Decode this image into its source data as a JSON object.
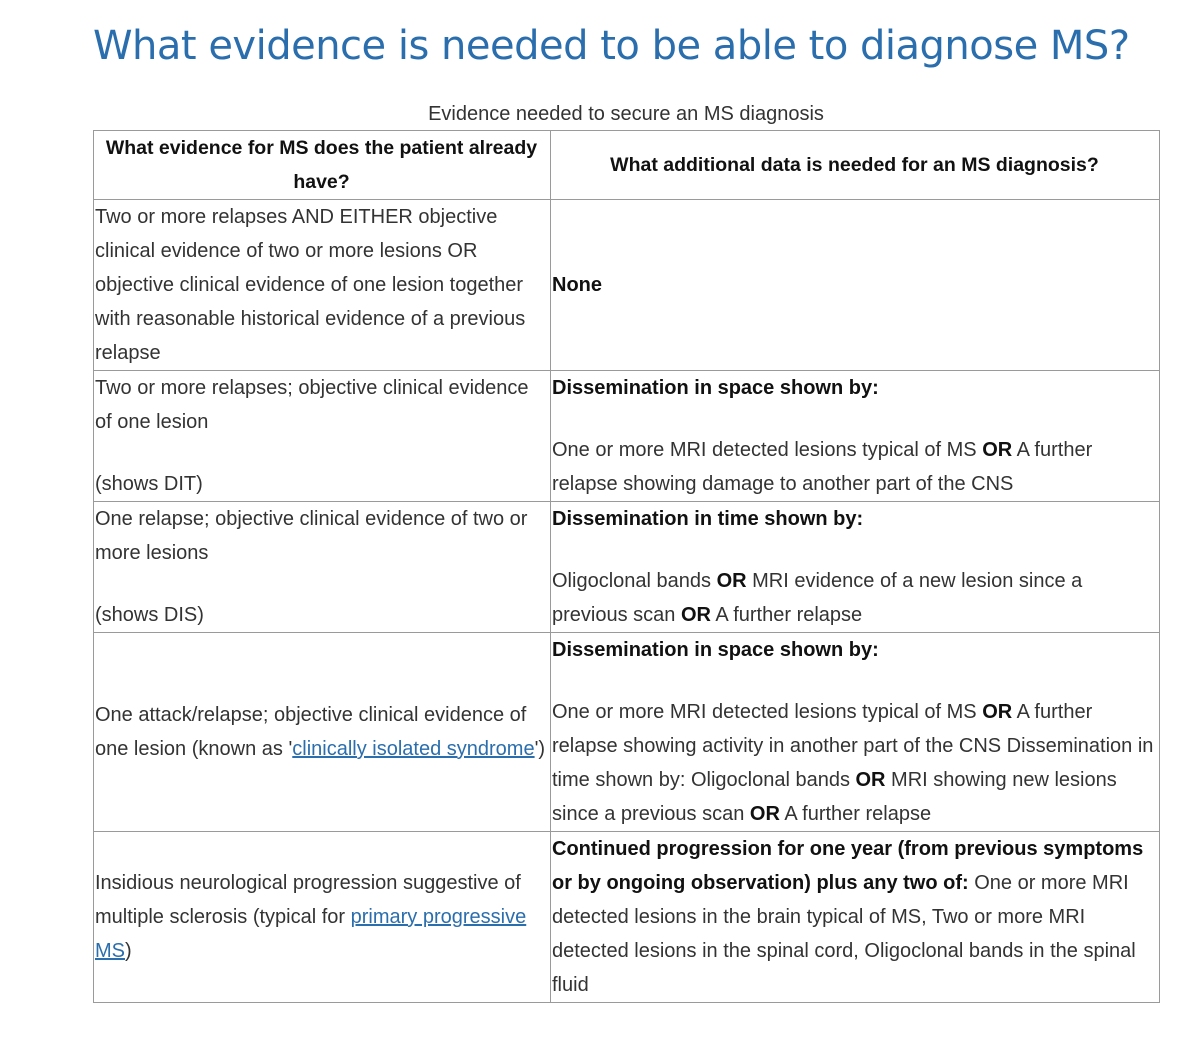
{
  "page": {
    "title": "What evidence is needed to be able to diagnose MS?",
    "caption": "Evidence needed to secure an MS diagnosis"
  },
  "table": {
    "headers": [
      "What evidence for MS does the patient already have?",
      "What additional data is needed for an MS diagnosis?"
    ],
    "rows": [
      {
        "evidence": "Two or more relapses AND EITHER objective clinical evidence of two or more lesions OR objective clinical evidence of one lesion together with reasonable historical evidence of a previous relapse",
        "needed": "None"
      },
      {
        "evidence": "Two or more relapses; objective clinical evidence of one lesion",
        "evidence_note": "(shows DIT)",
        "needed_heading": "Dissemination in space shown by:",
        "needed_parts": [
          "One or more MRI detected lesions typical of MS ",
          "OR",
          " A further relapse showing damage to another part of the CNS"
        ]
      },
      {
        "evidence": "One relapse; objective clinical evidence of two or more lesions",
        "evidence_note": "(shows DIS)",
        "needed_heading": "Dissemination in time shown by:",
        "needed_parts": [
          "Oligoclonal bands ",
          "OR",
          " MRI evidence of a new lesion since a previous scan ",
          "OR",
          " A further relapse"
        ]
      },
      {
        "evidence_parts": [
          "One attack/relapse; objective clinical evidence of one lesion (known as '",
          "clinically isolated syndrome",
          "')"
        ],
        "needed_heading": "Dissemination in space shown by:",
        "needed_parts": [
          "One or more MRI detected lesions typical of MS ",
          "OR",
          " A further relapse showing activity in another part of the CNS Dissemination in time shown by: Oligoclonal bands ",
          "OR",
          " MRI showing new lesions since a previous scan ",
          "OR",
          " A further relapse"
        ]
      },
      {
        "evidence_parts": [
          "Insidious neurological progression suggestive of multiple sclerosis (typical for ",
          "primary progressive MS",
          ")"
        ],
        "needed_bold": "Continued progression for one year (from previous symptoms or by ongoing observation) plus any two of:",
        "needed_text": " One or more MRI detected lesions in the brain typical of MS, Two or more MRI detected lesions in the spinal cord, Oligoclonal bands in the spinal fluid"
      }
    ]
  },
  "colors": {
    "title": "#2a6ead",
    "link": "#2a6ead",
    "text": "#333333",
    "border": "#9a9a9a"
  }
}
